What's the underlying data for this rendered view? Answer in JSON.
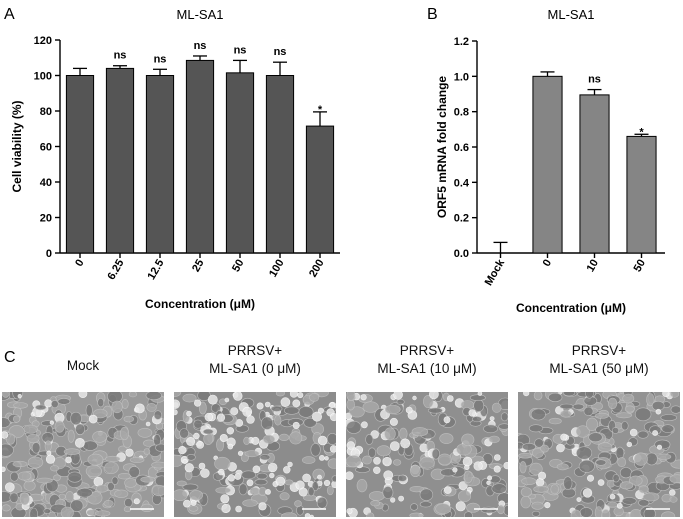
{
  "panel_labels": {
    "a": "A",
    "b": "B",
    "c": "C"
  },
  "chart_data": [
    {
      "type": "bar",
      "title": "ML-SA1",
      "xlabel": "Concentration (μM)",
      "ylabel": "Cell viability (%)",
      "categories": [
        "0",
        "6.25",
        "12.5",
        "25",
        "50",
        "100",
        "200"
      ],
      "values": [
        100,
        104,
        100,
        108.5,
        101.5,
        100,
        71.5
      ],
      "errors": [
        4,
        1.5,
        3.5,
        2.5,
        7,
        7.5,
        8
      ],
      "annotations": [
        "",
        "ns",
        "ns",
        "ns",
        "ns",
        "ns",
        "*"
      ],
      "ylim": [
        0,
        120
      ],
      "yticks": [
        0,
        20,
        40,
        60,
        80,
        100,
        120
      ],
      "grid": false,
      "bar_color": "#555555"
    },
    {
      "type": "bar",
      "title": "ML-SA1",
      "xlabel": "Concentration (μM)",
      "ylabel": "ORF5 mRNA fold change",
      "categories": [
        "Mock",
        "0",
        "10",
        "50"
      ],
      "values": [
        0.0,
        1.0,
        0.895,
        0.66
      ],
      "errors": [
        0.06,
        0.025,
        0.03,
        0.012
      ],
      "annotations": [
        "",
        "",
        "ns",
        "*"
      ],
      "ylim": [
        0,
        1.2
      ],
      "yticks": [
        "0.0",
        "0.2",
        "0.4",
        "0.6",
        "0.8",
        "1.0",
        "1.2"
      ],
      "grid": false,
      "bar_color": "#858585"
    }
  ],
  "micrographs": [
    {
      "line1": "",
      "line2": "Mock"
    },
    {
      "line1": "PRRSV+",
      "line2": "ML-SA1 (0 μM)"
    },
    {
      "line1": "PRRSV+",
      "line2": "ML-SA1 (10 μM)"
    },
    {
      "line1": "PRRSV+",
      "line2": "ML-SA1 (50 μM)"
    }
  ]
}
